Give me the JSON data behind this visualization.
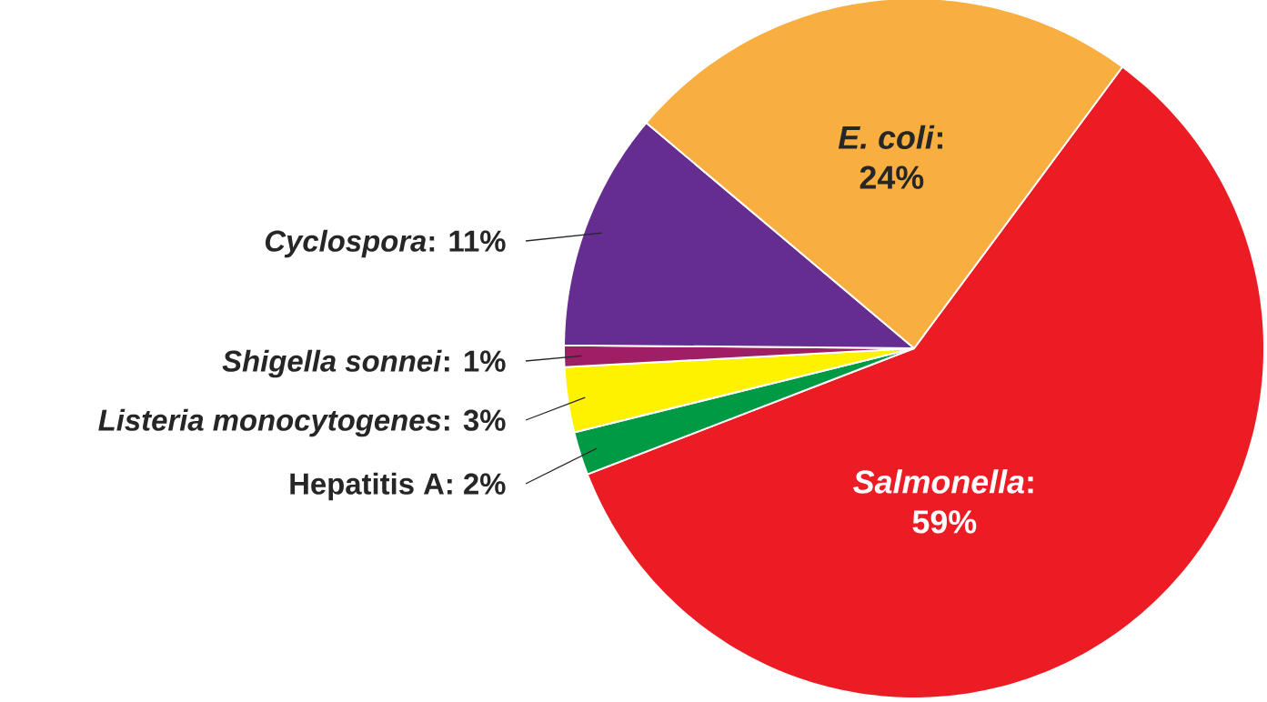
{
  "chart_data": {
    "type": "pie",
    "categories": [
      "*Salmonella*",
      "Hepatitis A",
      "*Listeria monocytogenes*",
      "*Shigella sonnei*",
      "*Cyclospora*",
      "*E. coli*"
    ],
    "values": [
      59,
      2,
      3,
      1,
      11,
      24
    ],
    "colors": [
      "#ec1c24",
      "#009a44",
      "#fff200",
      "#9e1f63",
      "#662d91",
      "#f9ae40"
    ],
    "value_labels": [
      ": 59%",
      ": 2%",
      ": 3%",
      ": 1%",
      ": 11%",
      ": 24%"
    ]
  }
}
